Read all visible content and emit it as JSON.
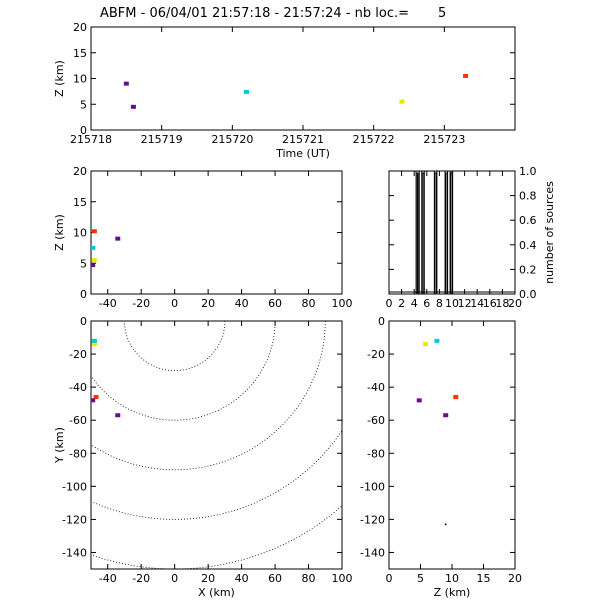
{
  "title": "ABFM - 06/04/01 21:57:18 - 21:57:24 - nb loc.=       5",
  "chart_data": [
    {
      "id": "time-z",
      "type": "scatter",
      "xlabel": "Time (UT)",
      "ylabel": "Z (km)",
      "xlim": [
        215718,
        215724
      ],
      "ylim": [
        0,
        20
      ],
      "xticks": [
        "215718",
        "215719",
        "215720",
        "215721",
        "215722",
        "215723"
      ],
      "yticks": [
        "0",
        "5",
        "10",
        "15",
        "20"
      ],
      "points": [
        {
          "x": 215718.5,
          "y": 9.0,
          "color": "#6a0d8c"
        },
        {
          "x": 215718.6,
          "y": 4.5,
          "color": "#6a0d8c"
        },
        {
          "x": 215720.2,
          "y": 7.4,
          "color": "#00c8e0"
        },
        {
          "x": 215722.4,
          "y": 5.5,
          "color": "#e8e800"
        },
        {
          "x": 215723.3,
          "y": 10.5,
          "color": "#ff3000"
        }
      ]
    },
    {
      "id": "x-z",
      "type": "scatter",
      "xlabel": "",
      "ylabel": "Z (km)",
      "xlim": [
        -50,
        100
      ],
      "ylim": [
        0,
        20
      ],
      "xticks": [
        "-40",
        "-20",
        "0",
        "20",
        "40",
        "60",
        "80",
        "100"
      ],
      "yticks": [
        "0",
        "5",
        "10",
        "15",
        "20"
      ],
      "points": [
        {
          "x": -48,
          "y": 10.2,
          "color": "#ff3000"
        },
        {
          "x": -49,
          "y": 7.5,
          "color": "#00c8e0"
        },
        {
          "x": -48,
          "y": 5.5,
          "color": "#e8e800"
        },
        {
          "x": -49,
          "y": 4.7,
          "color": "#6a0d8c"
        },
        {
          "x": -34,
          "y": 9.0,
          "color": "#6a0d8c"
        }
      ]
    },
    {
      "id": "histogram",
      "type": "line",
      "xlabel": "",
      "ylabel": "number of sources",
      "xlim": [
        0,
        20
      ],
      "ylim": [
        0,
        1
      ],
      "xticks": [
        "0",
        "2",
        "4",
        "6",
        "8",
        "10",
        "12",
        "14",
        "16",
        "18",
        "20"
      ],
      "yticks": [
        "0.0",
        "0.2",
        "0.4",
        "0.6",
        "0.8",
        "1.0"
      ],
      "bins": [
        [
          4.3,
          4.8
        ],
        [
          5.2,
          5.6
        ],
        [
          7.2,
          7.6
        ],
        [
          8.9,
          9.3
        ],
        [
          9.7,
          10.1
        ]
      ]
    },
    {
      "id": "x-y",
      "type": "scatter",
      "xlabel": "X (km)",
      "ylabel": "Y (km)",
      "xlim": [
        -50,
        100
      ],
      "ylim": [
        -150,
        0
      ],
      "xticks": [
        "-40",
        "-20",
        "0",
        "20",
        "40",
        "60",
        "80",
        "100"
      ],
      "yticks": [
        "0",
        "-20",
        "-40",
        "-60",
        "-80",
        "-100",
        "-120",
        "-140"
      ],
      "range_rings_km": [
        30,
        60,
        90,
        120,
        150
      ],
      "points": [
        {
          "x": -48,
          "y": -14,
          "color": "#e8e800"
        },
        {
          "x": -48,
          "y": -12,
          "color": "#00c8e0"
        },
        {
          "x": -47,
          "y": -46,
          "color": "#ff3000"
        },
        {
          "x": -49,
          "y": -48,
          "color": "#6a0d8c"
        },
        {
          "x": -34,
          "y": -57,
          "color": "#6a0d8c"
        }
      ]
    },
    {
      "id": "z-y",
      "type": "scatter",
      "xlabel": "Z (km)",
      "ylabel": "",
      "xlim": [
        0,
        20
      ],
      "ylim": [
        -150,
        0
      ],
      "xticks": [
        "0",
        "5",
        "10",
        "15",
        "20"
      ],
      "yticks": [
        "0",
        "-20",
        "-40",
        "-60",
        "-80",
        "-100",
        "-120",
        "-140"
      ],
      "points": [
        {
          "x": 5.8,
          "y": -14,
          "color": "#e8e800"
        },
        {
          "x": 7.6,
          "y": -12,
          "color": "#00c8e0"
        },
        {
          "x": 10.6,
          "y": -46,
          "color": "#ff3000"
        },
        {
          "x": 4.8,
          "y": -48,
          "color": "#6a0d8c"
        },
        {
          "x": 9.0,
          "y": -57,
          "color": "#6a0d8c"
        },
        {
          "x": 9.0,
          "y": -123,
          "color": "#000000"
        }
      ]
    }
  ]
}
